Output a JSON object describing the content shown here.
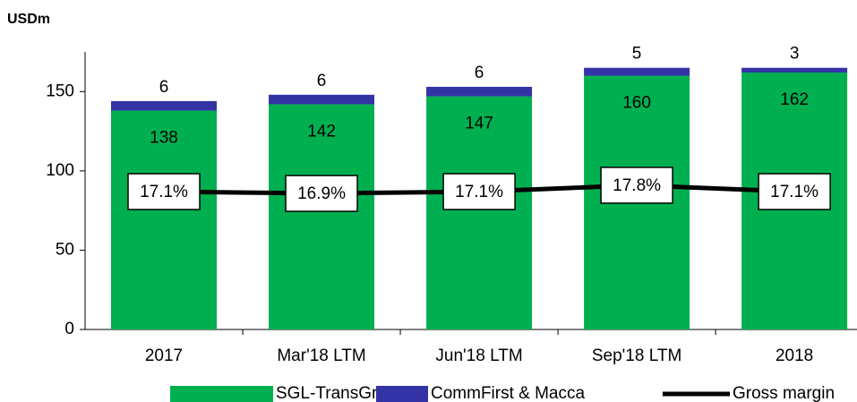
{
  "chart_data": {
    "type": "stacked_bar_line",
    "y_label": "USDm",
    "categories": [
      "2017",
      "Mar'18 LTM",
      "Jun'18 LTM",
      "Sep'18 LTM",
      "2018"
    ],
    "series": [
      {
        "name": "SGL-TransGroup",
        "color": "#00b050",
        "values": [
          138,
          142,
          147,
          160,
          162
        ]
      },
      {
        "name": "CommFirst & Macca",
        "color": "#3333a6",
        "values": [
          6,
          6,
          6,
          5,
          3
        ]
      },
      {
        "name": "Gross margin",
        "color": "#000000",
        "axis": "y2",
        "values": [
          17.1,
          16.9,
          17.1,
          17.8,
          17.1
        ],
        "value_labels": [
          "17.1%",
          "16.9%",
          "17.1%",
          "17.8%",
          "17.1%"
        ]
      }
    ],
    "ylim": [
      0,
      175
    ],
    "yticks": [
      0,
      50,
      100,
      150
    ],
    "y2lim": [
      1.9,
      32.5
    ]
  }
}
